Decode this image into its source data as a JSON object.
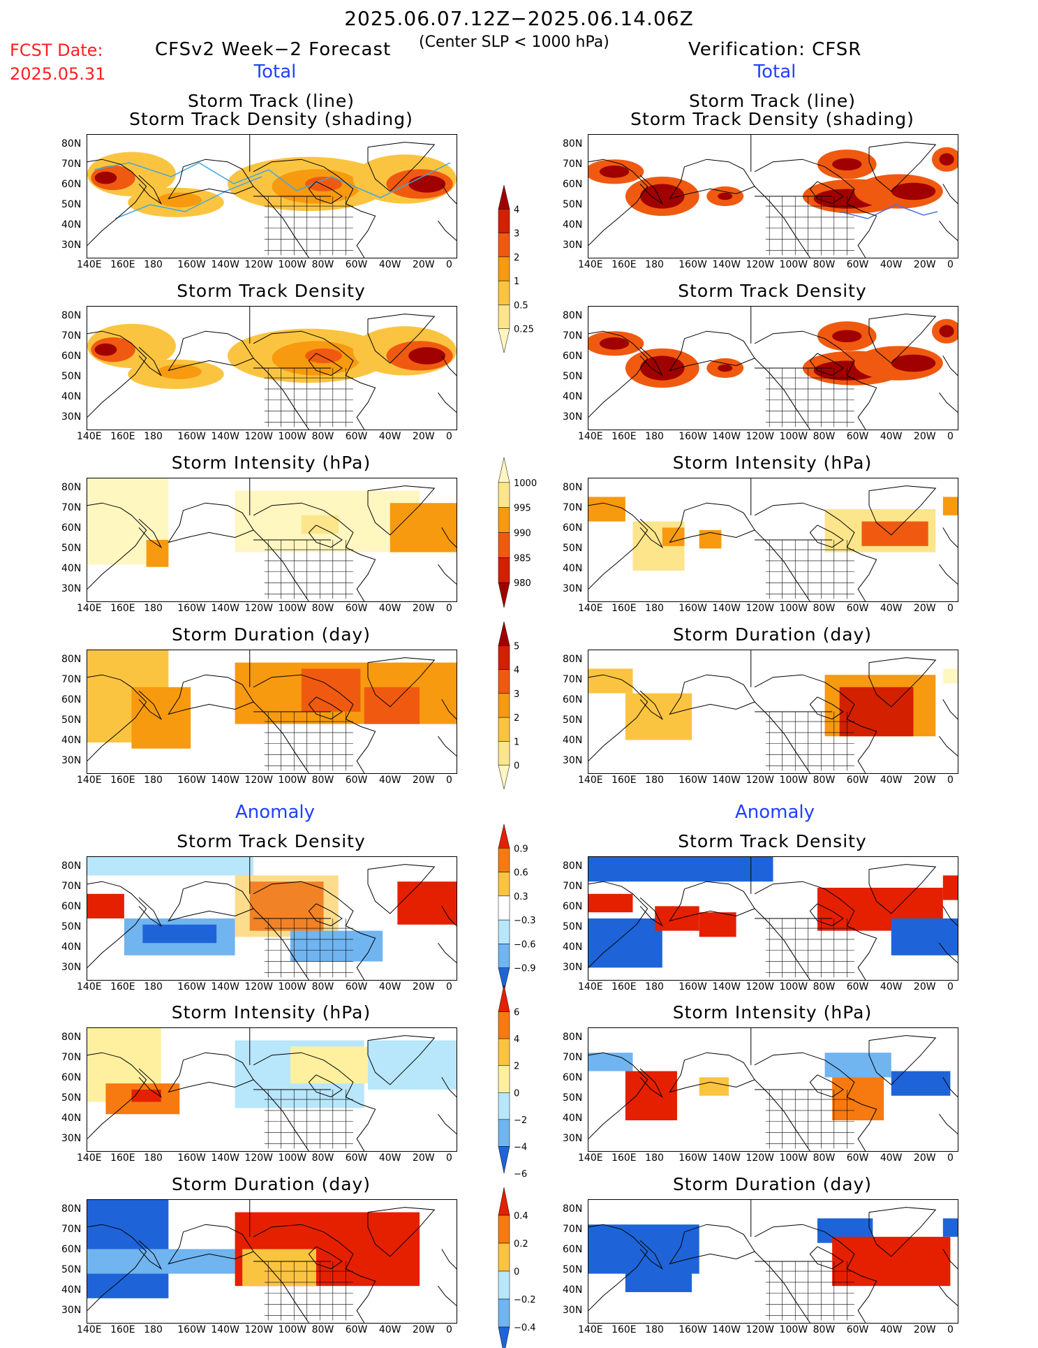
{
  "header": {
    "date_range": "2025.06.07.12Z−2025.06.14.06Z",
    "condition": "(Center SLP < 1000 hPa)",
    "fcst_label": "FCST Date:",
    "fcst_date": "2025.05.31",
    "left_title": "CFSv2 Week−2 Forecast",
    "right_title": "Verification: CFSR",
    "total_label": "Total",
    "anomaly_label": "Anomaly"
  },
  "axes": {
    "lon_ticks": [
      "140E",
      "160E",
      "180",
      "160W",
      "140W",
      "120W",
      "100W",
      "80W",
      "60W",
      "40W",
      "20W",
      "0"
    ],
    "lat_ticks": [
      "80N",
      "70N",
      "60N",
      "50N",
      "40N",
      "30N"
    ]
  },
  "panel_titles": {
    "track": [
      "Storm Track (line)",
      "Storm Track Density (shading)"
    ],
    "density": "Storm Track Density",
    "intensity": "Storm Intensity (hPa)",
    "duration": "Storm Duration (day)"
  },
  "colorbars": {
    "density_total": {
      "labels": [
        "4",
        "3",
        "2",
        "1",
        "0.5",
        "0.25"
      ],
      "colors": [
        "#a00000",
        "#d22000",
        "#f05a10",
        "#f79a10",
        "#fbc440",
        "#fce58a",
        "#fff6c0"
      ]
    },
    "intensity_total": {
      "labels": [
        "1000",
        "995",
        "990",
        "985",
        "980"
      ],
      "colors": [
        "#fff6c0",
        "#fce58a",
        "#f79a10",
        "#f05a10",
        "#d22000",
        "#a00000"
      ]
    },
    "duration_total": {
      "labels": [
        "5",
        "4",
        "3",
        "2",
        "1",
        "0"
      ],
      "colors": [
        "#a00000",
        "#d22000",
        "#f05a10",
        "#f79a10",
        "#fbc440",
        "#fce58a",
        "#fff6c0"
      ]
    },
    "density_anom": {
      "labels": [
        "0.9",
        "0.6",
        "0.3",
        "−0.3",
        "−0.6",
        "−0.9"
      ],
      "colors": [
        "#e42000",
        "#f77a10",
        "#fbc440",
        "#ffffff",
        "#b8e6fa",
        "#70b4f0",
        "#1e64d8"
      ]
    },
    "intensity_anom": {
      "labels": [
        "6",
        "4",
        "2",
        "0",
        "−2",
        "−4",
        "−6"
      ],
      "colors": [
        "#e42000",
        "#f77a10",
        "#fbc440",
        "#fff0a0",
        "#b8e6fa",
        "#70b4f0",
        "#1e64d8"
      ]
    },
    "duration_anom": {
      "labels": [
        "0.4",
        "0.2",
        "0",
        "−0.2",
        "−0.4"
      ],
      "colors": [
        "#e42000",
        "#f77a10",
        "#fbc440",
        "#b8e6fa",
        "#70b4f0",
        "#1e64d8"
      ]
    }
  }
}
